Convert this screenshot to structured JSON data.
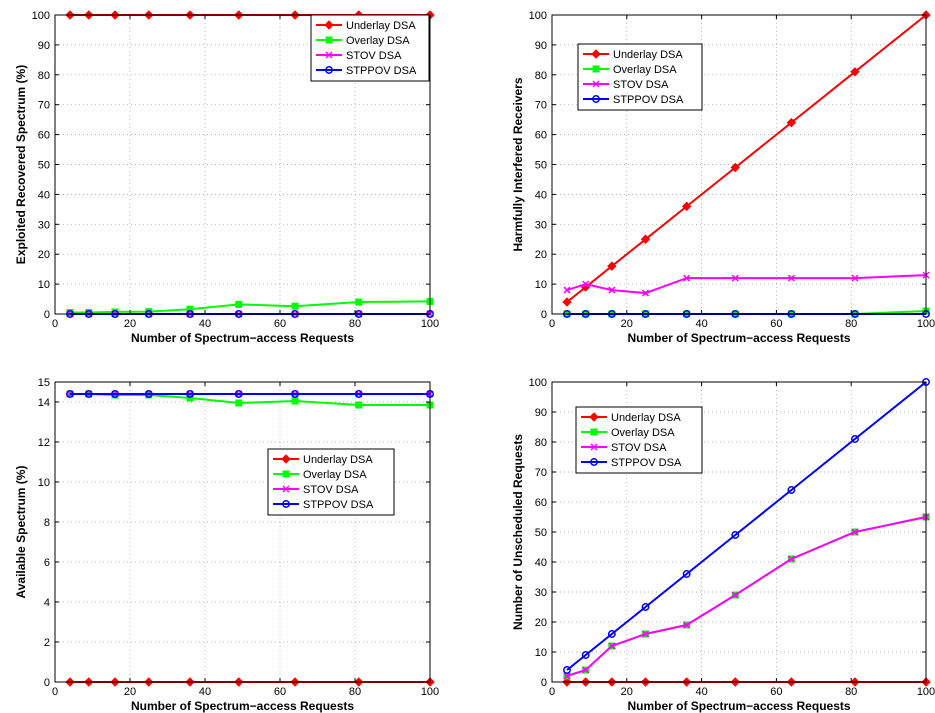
{
  "chart_data": [
    {
      "type": "line",
      "xlabel": "Number of Spectrum−access Requests",
      "ylabel": "Exploited Recovered Spectrum (%)",
      "xlim": [
        0,
        100
      ],
      "ylim": [
        0,
        100
      ],
      "xticks": [
        0,
        20,
        40,
        60,
        80,
        100
      ],
      "yticks": [
        0,
        10,
        20,
        30,
        40,
        50,
        60,
        70,
        80,
        90,
        100
      ],
      "grid": true,
      "legend_position": "top-right",
      "x": [
        4,
        9,
        16,
        25,
        36,
        49,
        64,
        81,
        100
      ],
      "series": [
        {
          "name": "Underlay DSA",
          "color": "#ff0000",
          "marker": "diamond",
          "values": [
            100,
            100,
            100,
            100,
            100,
            100,
            100,
            100,
            100
          ]
        },
        {
          "name": "Overlay DSA",
          "color": "#00ff00",
          "marker": "square",
          "values": [
            0.5,
            0.5,
            0.7,
            0.8,
            1.6,
            3.2,
            2.6,
            4.0,
            4.2
          ]
        },
        {
          "name": "STOV DSA",
          "color": "#ff00ff",
          "marker": "x",
          "values": [
            0,
            0,
            0,
            0,
            0,
            0,
            0,
            0,
            0
          ]
        },
        {
          "name": "STPPOV DSA",
          "color": "#0000ff",
          "marker": "circle",
          "values": [
            0,
            0,
            0,
            0,
            0,
            0,
            0,
            0,
            0
          ]
        }
      ]
    },
    {
      "type": "line",
      "xlabel": "Number of Spectrum−access Requests",
      "ylabel": "Harmfully Interfered Receivers",
      "xlim": [
        0,
        100
      ],
      "ylim": [
        0,
        100
      ],
      "xticks": [
        0,
        20,
        40,
        60,
        80,
        100
      ],
      "yticks": [
        0,
        10,
        20,
        30,
        40,
        50,
        60,
        70,
        80,
        90,
        100
      ],
      "grid": true,
      "legend_position": "top-left",
      "x": [
        4,
        9,
        16,
        25,
        36,
        49,
        64,
        81,
        100
      ],
      "series": [
        {
          "name": "Underlay DSA",
          "color": "#ff0000",
          "marker": "diamond",
          "values": [
            4,
            9,
            16,
            25,
            36,
            49,
            64,
            81,
            100
          ]
        },
        {
          "name": "Overlay DSA",
          "color": "#00ff00",
          "marker": "square",
          "values": [
            0,
            0,
            0,
            0,
            0,
            0,
            0,
            0,
            1
          ]
        },
        {
          "name": "STOV DSA",
          "color": "#ff00ff",
          "marker": "x",
          "values": [
            8,
            10,
            8,
            7,
            12,
            12,
            12,
            12,
            13
          ]
        },
        {
          "name": "STPPOV DSA",
          "color": "#0000ff",
          "marker": "circle",
          "values": [
            0,
            0,
            0,
            0,
            0,
            0,
            0,
            0,
            0
          ]
        }
      ]
    },
    {
      "type": "line",
      "xlabel": "Number of Spectrum−access Requests",
      "ylabel": "Available Spectrum (%)",
      "xlim": [
        0,
        100
      ],
      "ylim": [
        0,
        15
      ],
      "xticks": [
        0,
        20,
        40,
        60,
        80,
        100
      ],
      "yticks": [
        0,
        2,
        4,
        6,
        8,
        10,
        12,
        14,
        15
      ],
      "grid": true,
      "legend_position": "middle-right",
      "x": [
        4,
        9,
        16,
        25,
        36,
        49,
        64,
        81,
        100
      ],
      "series": [
        {
          "name": "Underlay DSA",
          "color": "#ff0000",
          "marker": "diamond",
          "values": [
            0,
            0,
            0,
            0,
            0,
            0,
            0,
            0,
            0
          ]
        },
        {
          "name": "Overlay DSA",
          "color": "#00ff00",
          "marker": "square",
          "values": [
            14.4,
            14.4,
            14.35,
            14.35,
            14.2,
            13.95,
            14.05,
            13.85,
            13.85
          ]
        },
        {
          "name": "STOV DSA",
          "color": "#ff00ff",
          "marker": "x",
          "values": [
            14.4,
            14.4,
            14.4,
            14.4,
            14.4,
            14.4,
            14.4,
            14.4,
            14.4
          ]
        },
        {
          "name": "STPPOV DSA",
          "color": "#0000ff",
          "marker": "circle",
          "values": [
            14.4,
            14.4,
            14.4,
            14.4,
            14.4,
            14.4,
            14.4,
            14.4,
            14.4
          ]
        }
      ]
    },
    {
      "type": "line",
      "xlabel": "Number of Spectrum−access Requests",
      "ylabel": "Number of Unscheduled Requests",
      "xlim": [
        0,
        100
      ],
      "ylim": [
        0,
        100
      ],
      "xticks": [
        0,
        20,
        40,
        60,
        80,
        100
      ],
      "yticks": [
        0,
        10,
        20,
        30,
        40,
        50,
        60,
        70,
        80,
        90,
        100
      ],
      "grid": true,
      "legend_position": "top-left",
      "x": [
        4,
        9,
        16,
        25,
        36,
        49,
        64,
        81,
        100
      ],
      "series": [
        {
          "name": "Underlay DSA",
          "color": "#ff0000",
          "marker": "diamond",
          "values": [
            0,
            0,
            0,
            0,
            0,
            0,
            0,
            0,
            0
          ]
        },
        {
          "name": "Overlay DSA",
          "color": "#00ff00",
          "marker": "square",
          "values": [
            2,
            4,
            12,
            16,
            19,
            29,
            41,
            50,
            55
          ]
        },
        {
          "name": "STOV DSA",
          "color": "#ff00ff",
          "marker": "x",
          "values": [
            2,
            4,
            12,
            16,
            19,
            29,
            41,
            50,
            55
          ]
        },
        {
          "name": "STPPOV DSA",
          "color": "#0000ff",
          "marker": "circle",
          "values": [
            4,
            9,
            16,
            25,
            36,
            49,
            64,
            81,
            100
          ]
        }
      ]
    }
  ]
}
